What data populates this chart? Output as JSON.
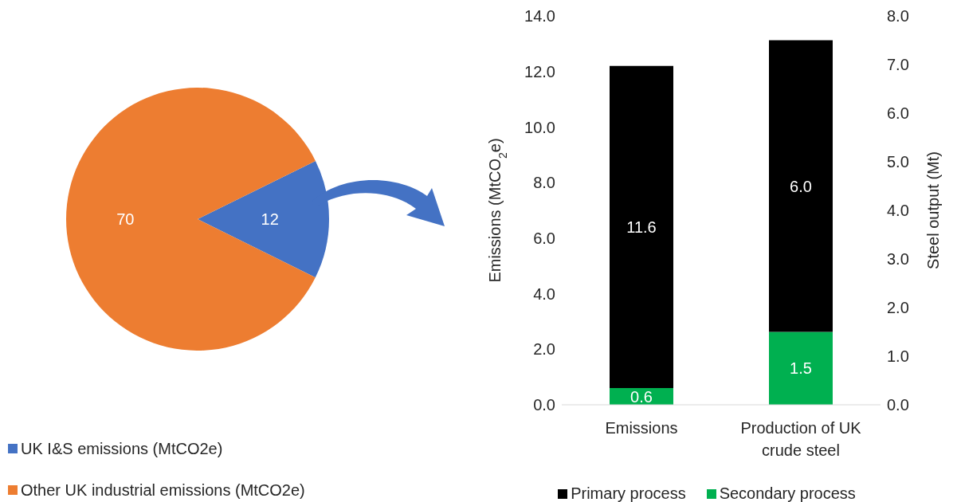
{
  "chart_data": [
    {
      "type": "pie",
      "categories": [
        "UK I&S emissions (MtCO2e)",
        "Other UK industrial emissions (MtCO2e)"
      ],
      "values": [
        12,
        70
      ],
      "colors": [
        "#4472c4",
        "#ed7d31"
      ],
      "data_labels": true,
      "legend": "bottom left"
    },
    {
      "type": "bar",
      "stacked": true,
      "categories": [
        "Emissions",
        "Production of UK crude steel"
      ],
      "ylabel": "Emissions (MtCO$_{2}$e)",
      "y2label": "Steel output (Mt)",
      "ylim": [
        0,
        14
      ],
      "yticks": [
        {
          "value": 0,
          "label": "0.0"
        },
        {
          "value": 2,
          "label": "2.0"
        },
        {
          "value": 4,
          "label": "4.0"
        },
        {
          "value": 6,
          "label": "6.0"
        },
        {
          "value": 8,
          "label": "8.0"
        },
        {
          "value": 10,
          "label": "10.0"
        },
        {
          "value": 12,
          "label": "12.0"
        },
        {
          "value": 14,
          "label": "14.0"
        }
      ],
      "y2lim": [
        0,
        8
      ],
      "y2ticks": [
        {
          "value": 0,
          "label": "0.0"
        },
        {
          "value": 1,
          "label": "1.0"
        },
        {
          "value": 2,
          "label": "2.0"
        },
        {
          "value": 3,
          "label": "3.0"
        },
        {
          "value": 4,
          "label": "4.0"
        },
        {
          "value": 5,
          "label": "5.0"
        },
        {
          "value": 6,
          "label": "6.0"
        },
        {
          "value": 7,
          "label": "7.0"
        },
        {
          "value": 8,
          "label": "8.0"
        }
      ],
      "series": [
        {
          "name": "Secondary process",
          "color": "#00b050",
          "values": [
            0.6,
            null
          ],
          "value_labels": [
            "0.6",
            null
          ]
        },
        {
          "name": "Primary process",
          "color": "#000000",
          "values": [
            11.6,
            null
          ],
          "value_labels": [
            "11.6",
            null
          ]
        },
        {
          "color": "#00b050",
          "axis": "y2",
          "values": [
            null,
            1.5
          ],
          "value_labels": [
            null,
            "1.5"
          ]
        },
        {
          "color": "#000000",
          "axis": "y2",
          "values": [
            null,
            6.0
          ],
          "value_labels": [
            null,
            "6.0"
          ]
        }
      ],
      "legend": "bottom"
    }
  ]
}
